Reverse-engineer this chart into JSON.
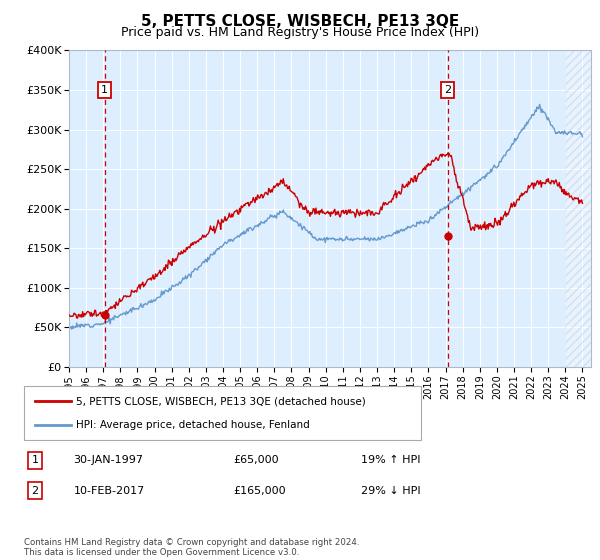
{
  "title": "5, PETTS CLOSE, WISBECH, PE13 3QE",
  "subtitle": "Price paid vs. HM Land Registry's House Price Index (HPI)",
  "legend_line1": "5, PETTS CLOSE, WISBECH, PE13 3QE (detached house)",
  "legend_line2": "HPI: Average price, detached house, Fenland",
  "sale1_date": "30-JAN-1997",
  "sale1_price": "£65,000",
  "sale1_hpi": "19% ↑ HPI",
  "sale1_year": 1997.08,
  "sale1_value": 65000,
  "sale2_date": "10-FEB-2017",
  "sale2_price": "£165,000",
  "sale2_hpi": "29% ↓ HPI",
  "sale2_year": 2017.12,
  "sale2_value": 165000,
  "ylim": [
    0,
    400000
  ],
  "xlim_start": 1995.0,
  "xlim_end": 2025.5,
  "yticks": [
    0,
    50000,
    100000,
    150000,
    200000,
    250000,
    300000,
    350000,
    400000
  ],
  "ytick_labels": [
    "£0",
    "£50K",
    "£100K",
    "£150K",
    "£200K",
    "£250K",
    "£300K",
    "£350K",
    "£400K"
  ],
  "xticks": [
    1995,
    1996,
    1997,
    1998,
    1999,
    2000,
    2001,
    2002,
    2003,
    2004,
    2005,
    2006,
    2007,
    2008,
    2009,
    2010,
    2011,
    2012,
    2013,
    2014,
    2015,
    2016,
    2017,
    2018,
    2019,
    2020,
    2021,
    2022,
    2023,
    2024,
    2025
  ],
  "red_color": "#cc0000",
  "blue_color": "#6699cc",
  "bg_color": "#ddeeff",
  "marker_box_color": "#cc0000",
  "footer": "Contains HM Land Registry data © Crown copyright and database right 2024.\nThis data is licensed under the Open Government Licence v3.0.",
  "title_fontsize": 11,
  "subtitle_fontsize": 9,
  "hatch_start": 2024.0,
  "noise_seed": 12
}
